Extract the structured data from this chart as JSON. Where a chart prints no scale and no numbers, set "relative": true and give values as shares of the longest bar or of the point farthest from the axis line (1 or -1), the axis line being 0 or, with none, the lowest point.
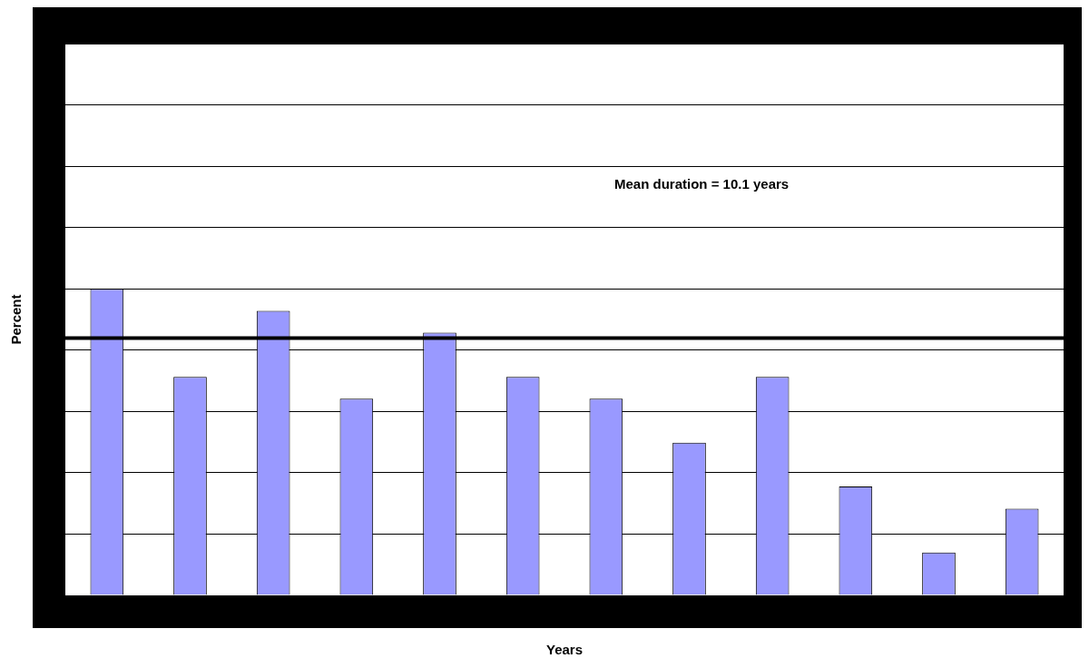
{
  "chart_data": {
    "type": "bar",
    "relative": true,
    "xlabel": "Years",
    "ylabel": "Percent",
    "categories": [
      null,
      null,
      null,
      null,
      null,
      null,
      null,
      null,
      null,
      null,
      null,
      null
    ],
    "values": [
      1,
      0.713,
      0.928,
      0.642,
      0.857,
      0.713,
      0.642,
      0.498,
      0.713,
      0.355,
      0.14,
      0.283
    ],
    "color": "#9999ff",
    "grid": "y",
    "ref_lines": [
      {
        "axis": "y",
        "value": 0.839,
        "color": "#000000"
      }
    ],
    "annotations": [
      "Mean duration = 10.1 years"
    ]
  }
}
